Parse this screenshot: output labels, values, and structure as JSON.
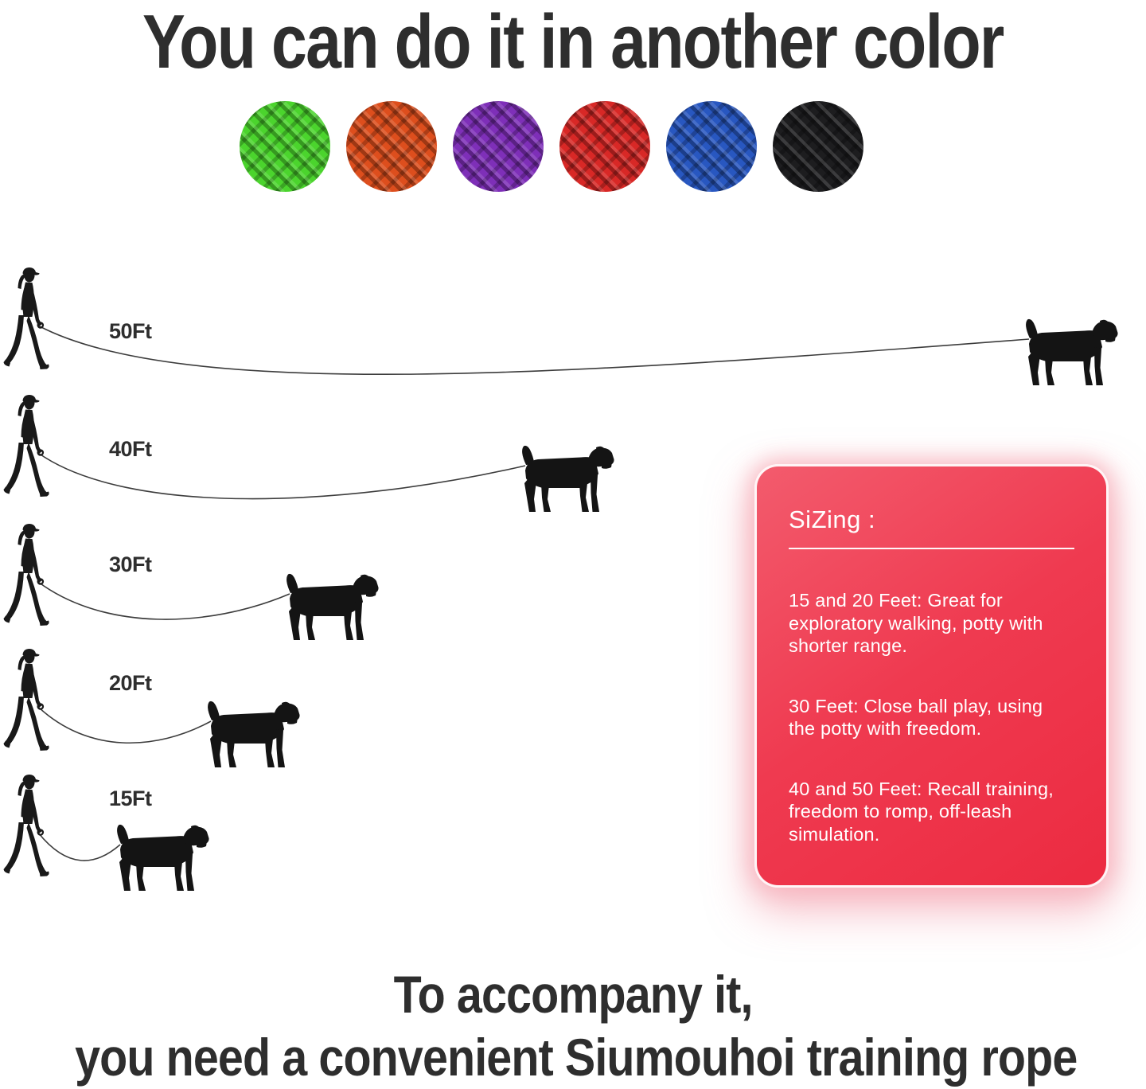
{
  "title": "You can do it in another color",
  "color_options": [
    {
      "name": "green",
      "hex": "#4bd42d"
    },
    {
      "name": "orange",
      "hex": "#dd4e1d"
    },
    {
      "name": "purple",
      "hex": "#7e2fb8"
    },
    {
      "name": "red",
      "hex": "#d82826"
    },
    {
      "name": "blue",
      "hex": "#2857c0"
    },
    {
      "name": "black",
      "hex": "#1d1d1f"
    }
  ],
  "diagram": {
    "rows": [
      {
        "label": "50Ft",
        "length_ft": 50
      },
      {
        "label": "40Ft",
        "length_ft": 40
      },
      {
        "label": "30Ft",
        "length_ft": 30
      },
      {
        "label": "20Ft",
        "length_ft": 20
      },
      {
        "label": "15Ft",
        "length_ft": 15
      }
    ]
  },
  "sizing_card": {
    "heading": "SiZing :",
    "items": [
      "15 and 20 Feet: Great for exploratory walking, potty with shorter range.",
      "30 Feet: Close ball play, using the potty with freedom.",
      "40 and 50 Feet: Recall training, freedom to romp, off-leash simulation."
    ]
  },
  "footer": {
    "line1": "To accompany it,",
    "line2": "you need a convenient Siumouhoi training rope"
  }
}
